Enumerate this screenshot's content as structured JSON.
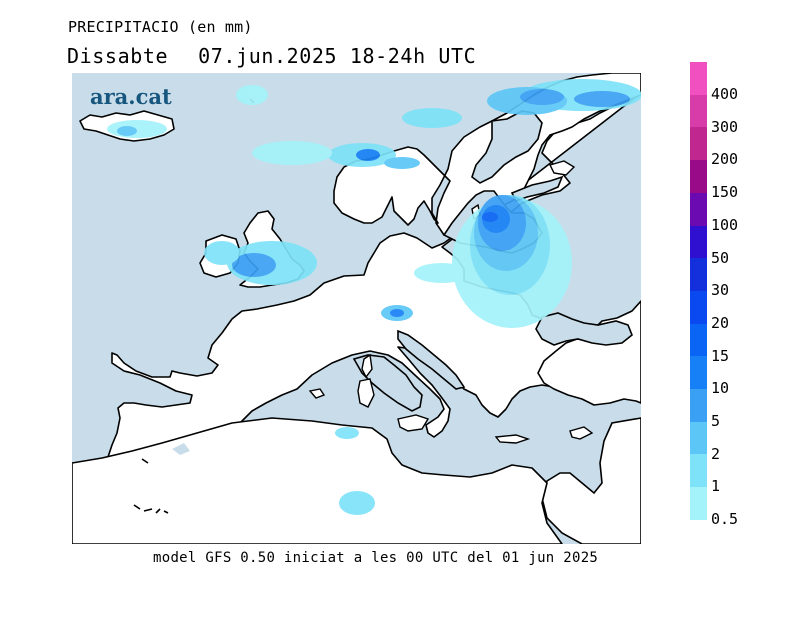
{
  "header": {
    "title": "PRECIPITACIO (en mm)",
    "day": "Dissabte",
    "date": "07.jun.2025",
    "period": "18-24h UTC"
  },
  "logo": {
    "text": "ara.cat"
  },
  "footer": {
    "text": "model GFS 0.50 iniciat a les 00 UTC del 01 jun 2025"
  },
  "legend": {
    "levels": [
      {
        "label": "400",
        "color": "#f050c0"
      },
      {
        "label": "300",
        "color": "#d83ca8"
      },
      {
        "label": "200",
        "color": "#c02890"
      },
      {
        "label": "150",
        "color": "#980a88"
      },
      {
        "label": "100",
        "color": "#6a0ab0"
      },
      {
        "label": "50",
        "color": "#3010d0"
      },
      {
        "label": "30",
        "color": "#1430dc"
      },
      {
        "label": "20",
        "color": "#0a48f0"
      },
      {
        "label": "15",
        "color": "#0a64f4"
      },
      {
        "label": "10",
        "color": "#1880f6"
      },
      {
        "label": "5",
        "color": "#3aa0f4"
      },
      {
        "label": "2",
        "color": "#5cc6f6"
      },
      {
        "label": "1",
        "color": "#7ee2f8"
      },
      {
        "label": "0.5",
        "color": "#a4f2fa"
      }
    ]
  },
  "colors": {
    "sea": "#c8dde9",
    "land": "#ffffff",
    "coast": "#000000"
  }
}
